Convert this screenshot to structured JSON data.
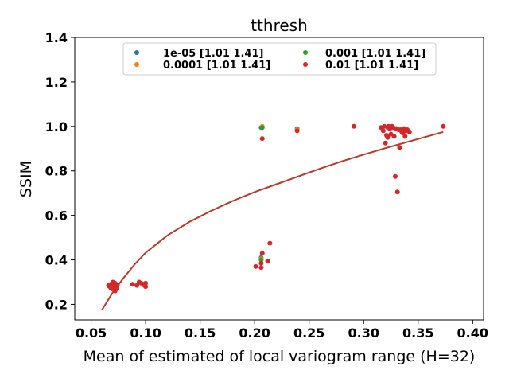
{
  "chart_data": {
    "type": "scatter",
    "title": "tthresh",
    "xlabel": "Mean of estimated of local variogram range (H=32)",
    "ylabel": "SSIM",
    "xlim": [
      0.035,
      0.41
    ],
    "ylim": [
      0.13,
      1.4
    ],
    "xticks": [
      0.05,
      0.1,
      0.15,
      0.2,
      0.25,
      0.3,
      0.35,
      0.4
    ],
    "xtick_labels": [
      "0.05",
      "0.10",
      "0.15",
      "0.20",
      "0.25",
      "0.30",
      "0.35",
      "0.40"
    ],
    "yticks": [
      0.2,
      0.4,
      0.6,
      0.8,
      1.0,
      1.2,
      1.4
    ],
    "ytick_labels": [
      "0.2",
      "0.4",
      "0.6",
      "0.8",
      "1.0",
      "1.2",
      "1.4"
    ],
    "legend_position": "upper center",
    "series": [
      {
        "name": "1e-05 [1.01 1.41]",
        "color": "#1f77b4",
        "points": [
          [
            0.206,
            0.995
          ],
          [
            0.206,
            0.41
          ],
          [
            0.239,
            0.99
          ],
          [
            0.07,
            0.285
          ],
          [
            0.098,
            0.29
          ],
          [
            0.322,
            0.995
          ]
        ]
      },
      {
        "name": "0.0001 [1.01 1.41]",
        "color": "#ff7f0e",
        "points": [
          [
            0.207,
            1.0
          ],
          [
            0.206,
            0.405
          ],
          [
            0.239,
            0.985
          ]
        ]
      },
      {
        "name": "0.001 [1.01 1.41]",
        "color": "#2ca02c",
        "points": [
          [
            0.207,
            0.995
          ],
          [
            0.206,
            0.4
          ],
          [
            0.07,
            0.28
          ]
        ]
      },
      {
        "name": "0.01 [1.01 1.41]",
        "color": "#d62728",
        "points": [
          [
            0.066,
            0.285
          ],
          [
            0.067,
            0.28
          ],
          [
            0.068,
            0.29
          ],
          [
            0.068,
            0.275
          ],
          [
            0.069,
            0.27
          ],
          [
            0.069,
            0.285
          ],
          [
            0.07,
            0.3
          ],
          [
            0.07,
            0.275
          ],
          [
            0.071,
            0.29
          ],
          [
            0.071,
            0.28
          ],
          [
            0.072,
            0.295
          ],
          [
            0.072,
            0.26
          ],
          [
            0.073,
            0.275
          ],
          [
            0.073,
            0.27
          ],
          [
            0.074,
            0.285
          ],
          [
            0.088,
            0.29
          ],
          [
            0.092,
            0.285
          ],
          [
            0.094,
            0.3
          ],
          [
            0.096,
            0.295
          ],
          [
            0.099,
            0.285
          ],
          [
            0.1,
            0.295
          ],
          [
            0.1,
            0.28
          ],
          [
            0.201,
            0.37
          ],
          [
            0.206,
            0.365
          ],
          [
            0.206,
            0.385
          ],
          [
            0.207,
            0.43
          ],
          [
            0.207,
            0.945
          ],
          [
            0.212,
            0.395
          ],
          [
            0.214,
            0.475
          ],
          [
            0.239,
            0.98
          ],
          [
            0.291,
            1.0
          ],
          [
            0.316,
            0.995
          ],
          [
            0.318,
            0.98
          ],
          [
            0.319,
            1.0
          ],
          [
            0.32,
            0.925
          ],
          [
            0.321,
            0.96
          ],
          [
            0.322,
            0.95
          ],
          [
            0.323,
            1.0
          ],
          [
            0.324,
            0.99
          ],
          [
            0.325,
            0.965
          ],
          [
            0.326,
            1.0
          ],
          [
            0.327,
            0.995
          ],
          [
            0.328,
            0.955
          ],
          [
            0.329,
            0.775
          ],
          [
            0.33,
            0.99
          ],
          [
            0.331,
            0.705
          ],
          [
            0.332,
            0.985
          ],
          [
            0.333,
            0.905
          ],
          [
            0.334,
            0.985
          ],
          [
            0.335,
            0.975
          ],
          [
            0.336,
            0.97
          ],
          [
            0.337,
            0.99
          ],
          [
            0.338,
            0.955
          ],
          [
            0.339,
            0.98
          ],
          [
            0.34,
            0.985
          ],
          [
            0.342,
            0.975
          ],
          [
            0.373,
            1.0
          ]
        ]
      }
    ],
    "fit_curve": {
      "color": "#b5392b",
      "points": [
        [
          0.06,
          0.175
        ],
        [
          0.07,
          0.255
        ],
        [
          0.08,
          0.32
        ],
        [
          0.09,
          0.38
        ],
        [
          0.1,
          0.432
        ],
        [
          0.12,
          0.51
        ],
        [
          0.14,
          0.57
        ],
        [
          0.16,
          0.62
        ],
        [
          0.18,
          0.665
        ],
        [
          0.2,
          0.705
        ],
        [
          0.22,
          0.74
        ],
        [
          0.24,
          0.775
        ],
        [
          0.26,
          0.81
        ],
        [
          0.28,
          0.843
        ],
        [
          0.3,
          0.873
        ],
        [
          0.32,
          0.902
        ],
        [
          0.34,
          0.93
        ],
        [
          0.36,
          0.957
        ],
        [
          0.373,
          0.975
        ]
      ]
    }
  }
}
